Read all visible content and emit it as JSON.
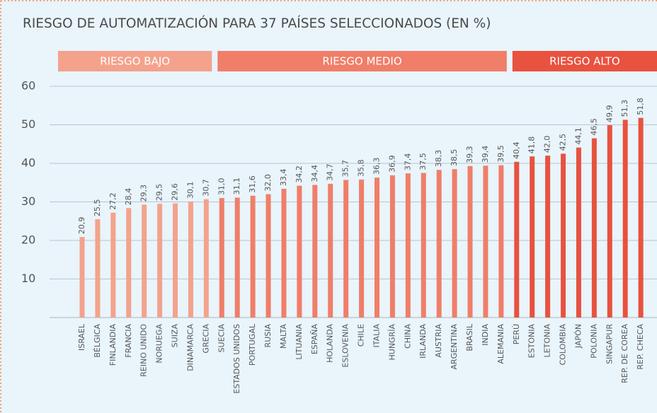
{
  "chart_data": {
    "type": "bar",
    "title": "RIESGO DE AUTOMATIZACIÓN PARA 37 PAÍSES SELECCIONADOS (EN %)",
    "ylim": [
      0,
      60
    ],
    "yticks": [
      10,
      20,
      30,
      40,
      50,
      60
    ],
    "grid": true,
    "groups": [
      {
        "name": "RIESGO BAJO",
        "color": "#f4a28c",
        "categories": [
          "ISRAEL",
          "BÉLGICA",
          "FINLANDIA",
          "FRANCIA",
          "REINO UNIDO",
          "NORUEGA",
          "SUIZA",
          "DINAMARCA",
          "GRECIA"
        ],
        "values": [
          20.9,
          25.5,
          27.2,
          28.4,
          29.3,
          29.5,
          29.6,
          30.1,
          30.7
        ],
        "value_labels": [
          "20,9",
          "25,5",
          "27,2",
          "28,4",
          "29,3",
          "29,5",
          "29,6",
          "30,1",
          "30,7"
        ]
      },
      {
        "name": "RIESGO MEDIO",
        "color": "#f07e68",
        "categories": [
          "SUECIA",
          "ESTADOS UNIDOS",
          "PORTUGAL",
          "RUSIA",
          "MALTA",
          "LITUANIA",
          "ESPAÑA",
          "HOLANDA",
          "ESLOVENIA",
          "CHILE",
          "ITALIA",
          "HUNGRÍA",
          "CHINA",
          "IRLANDA",
          "AUSTRIA",
          "ARGENTINA",
          "BRASIL",
          "INDIA",
          "ALEMANIA"
        ],
        "values": [
          31.0,
          31.1,
          31.6,
          32.0,
          33.4,
          34.2,
          34.4,
          34.7,
          35.7,
          35.8,
          36.3,
          36.9,
          37.4,
          37.5,
          38.3,
          38.5,
          39.3,
          39.4,
          39.5
        ],
        "value_labels": [
          "31,0",
          "31,1",
          "31,6",
          "32,0",
          "33,4",
          "34,2",
          "34,4",
          "34,7",
          "35,7",
          "35,8",
          "36,3",
          "36,9",
          "37,4",
          "37,5",
          "38,3",
          "38,5",
          "39,3",
          "39,4",
          "39,5"
        ]
      },
      {
        "name": "RIESGO ALTO",
        "color": "#e8523f",
        "categories": [
          "PERÚ",
          "ESTONIA",
          "LETONIA",
          "COLOMBIA",
          "JAPÓN",
          "POLONIA",
          "SINGAPUR",
          "REP. DE COREA",
          "REP. CHECA"
        ],
        "values": [
          40.4,
          41.8,
          42.0,
          42.5,
          44.1,
          46.5,
          49.9,
          51.3,
          51.8
        ],
        "value_labels": [
          "40,4",
          "41,8",
          "42,0",
          "42,5",
          "44,1",
          "46,5",
          "49,9",
          "51,3",
          "51,8"
        ]
      }
    ]
  }
}
